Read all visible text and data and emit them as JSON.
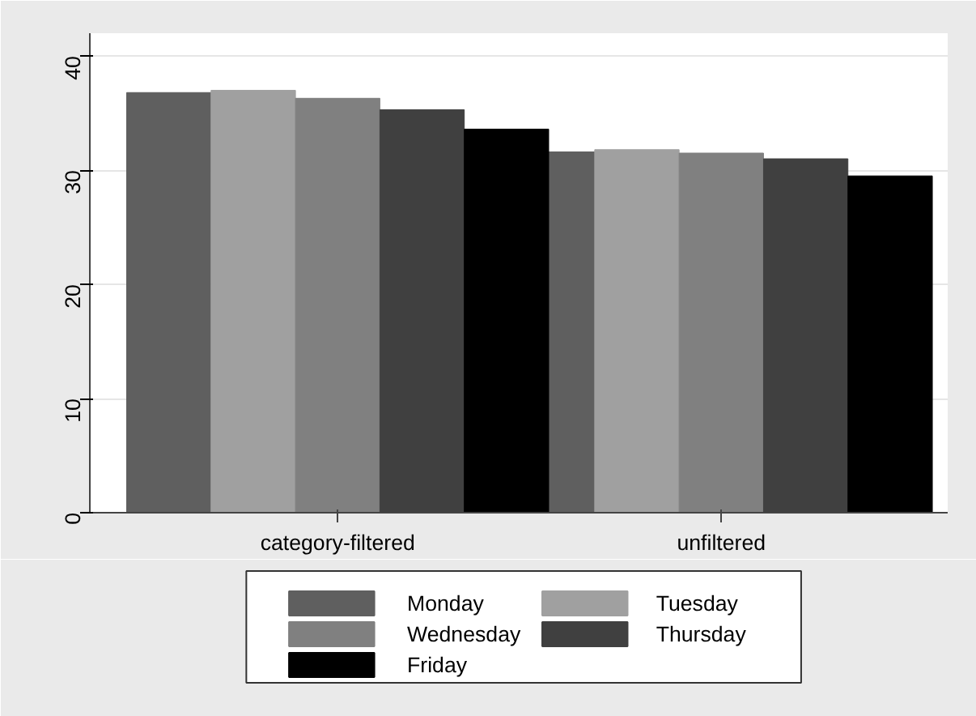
{
  "chart_data": {
    "type": "bar",
    "categories": [
      "category-filtered",
      "unfiltered"
    ],
    "series": [
      {
        "name": "Monday",
        "color": "#5f5f5f",
        "values": [
          36.8,
          31.6
        ]
      },
      {
        "name": "Tuesday",
        "color": "#a0a0a0",
        "values": [
          37.0,
          31.8
        ]
      },
      {
        "name": "Wednesday",
        "color": "#808080",
        "values": [
          36.3,
          31.5
        ]
      },
      {
        "name": "Thursday",
        "color": "#404040",
        "values": [
          35.3,
          31.0
        ]
      },
      {
        "name": "Friday",
        "color": "#000000",
        "values": [
          33.6,
          29.5
        ]
      }
    ],
    "ylim": [
      0,
      42
    ],
    "yticks": [
      0,
      10,
      20,
      30,
      40
    ],
    "grid": "y",
    "legend": "bottom"
  }
}
